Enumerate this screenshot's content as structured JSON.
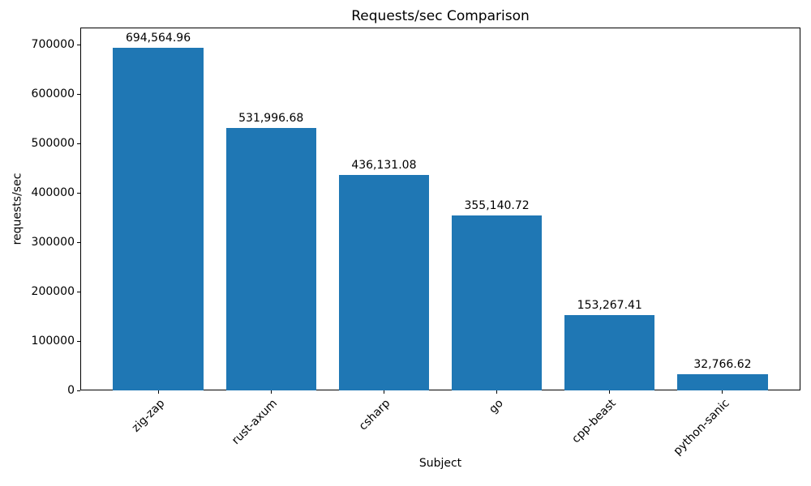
{
  "chart_data": {
    "type": "bar",
    "title": "Requests/sec Comparison",
    "xlabel": "Subject",
    "ylabel": "requests/sec",
    "categories": [
      "zig-zap",
      "rust-axum",
      "csharp",
      "go",
      "cpp-beast",
      "python-sanic"
    ],
    "values": [
      694564.96,
      531996.68,
      436131.08,
      355140.72,
      153267.41,
      32766.62
    ],
    "value_labels": [
      "694,564.96",
      "531,996.68",
      "436,131.08",
      "355,140.72",
      "153,267.41",
      "32,766.62"
    ],
    "yticks": [
      0,
      100000,
      200000,
      300000,
      400000,
      500000,
      600000,
      700000
    ],
    "ytick_labels": [
      "0",
      "100000",
      "200000",
      "300000",
      "400000",
      "500000",
      "600000",
      "700000"
    ],
    "ylim": [
      0,
      735000
    ],
    "x_tick_rotation_deg": 45,
    "bar_color": "#1f77b4",
    "text_color": "#000000",
    "background_color": "#ffffff",
    "grid": false,
    "legend": null
  }
}
